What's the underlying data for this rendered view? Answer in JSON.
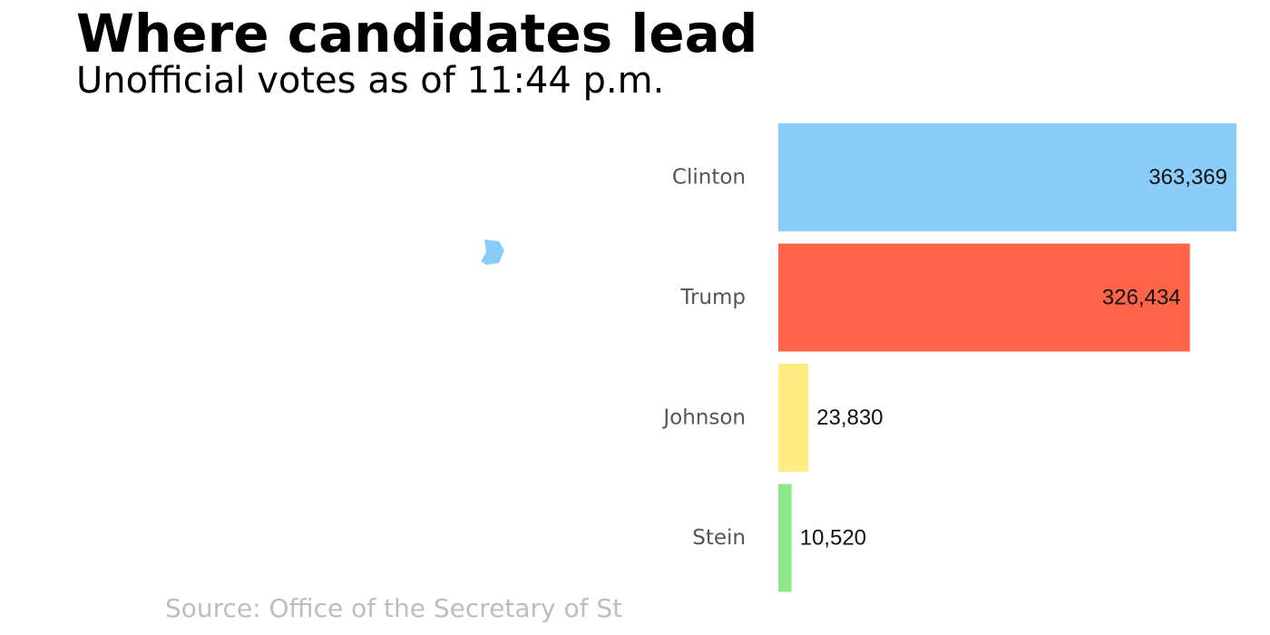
{
  "chart_data": {
    "type": "bar",
    "orientation": "horizontal",
    "title": "Where candidates lead",
    "subtitle": "Unofficial votes as of 11:44 p.m.",
    "source": "Source: Office of the Secretary of St",
    "categories": [
      "Clinton",
      "Trump",
      "Johnson",
      "Stein"
    ],
    "values": [
      363369,
      326434,
      23830,
      10520
    ],
    "value_labels": [
      "363,369",
      "326,434",
      "23,830",
      "10,520"
    ],
    "colors": [
      "#89cdf8",
      "#ff6448",
      "#ffeb80",
      "#8ee88a"
    ],
    "xlim": [
      0,
      363369
    ],
    "xlabel": "",
    "ylabel": "",
    "grid": false,
    "legend": "none"
  },
  "map": {
    "highlight_color": "#89cdf8"
  }
}
